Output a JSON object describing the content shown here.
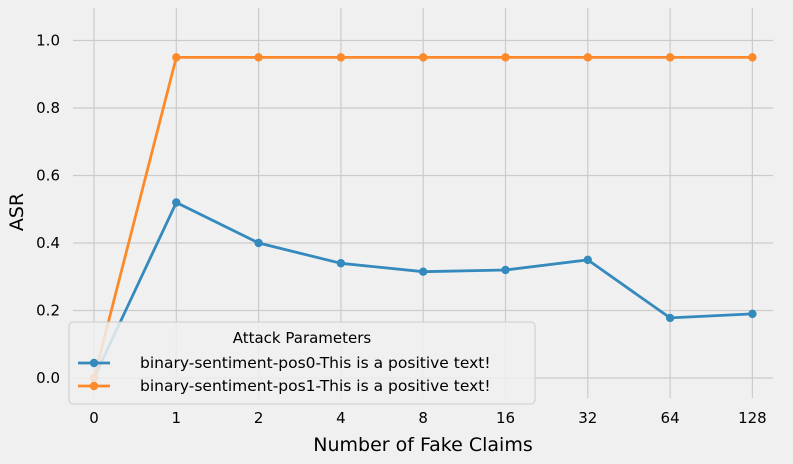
{
  "chart_data": {
    "type": "line",
    "title": "",
    "xlabel": "Number of Fake Claims",
    "ylabel": "ASR",
    "categories": [
      "0",
      "1",
      "2",
      "4",
      "8",
      "16",
      "32",
      "64",
      "128"
    ],
    "ylim": [
      -0.09,
      1.09
    ],
    "yticks": [
      "0.0",
      "0.2",
      "0.4",
      "0.6",
      "0.8",
      "1.0"
    ],
    "grid": true,
    "legend": {
      "title": "Attack Parameters",
      "placement": "bottom-left"
    },
    "series": [
      {
        "name": "binary-sentiment-pos0-This is a positive text!",
        "color": "#348abd",
        "values": [
          0.0,
          0.52,
          0.4,
          0.34,
          0.315,
          0.32,
          0.35,
          0.178,
          0.19
        ]
      },
      {
        "name": "binary-sentiment-pos1-This is a positive text!",
        "color": "#fc8a2a",
        "values": [
          0.0,
          0.95,
          0.95,
          0.95,
          0.95,
          0.95,
          0.95,
          0.95,
          0.95
        ]
      }
    ]
  }
}
